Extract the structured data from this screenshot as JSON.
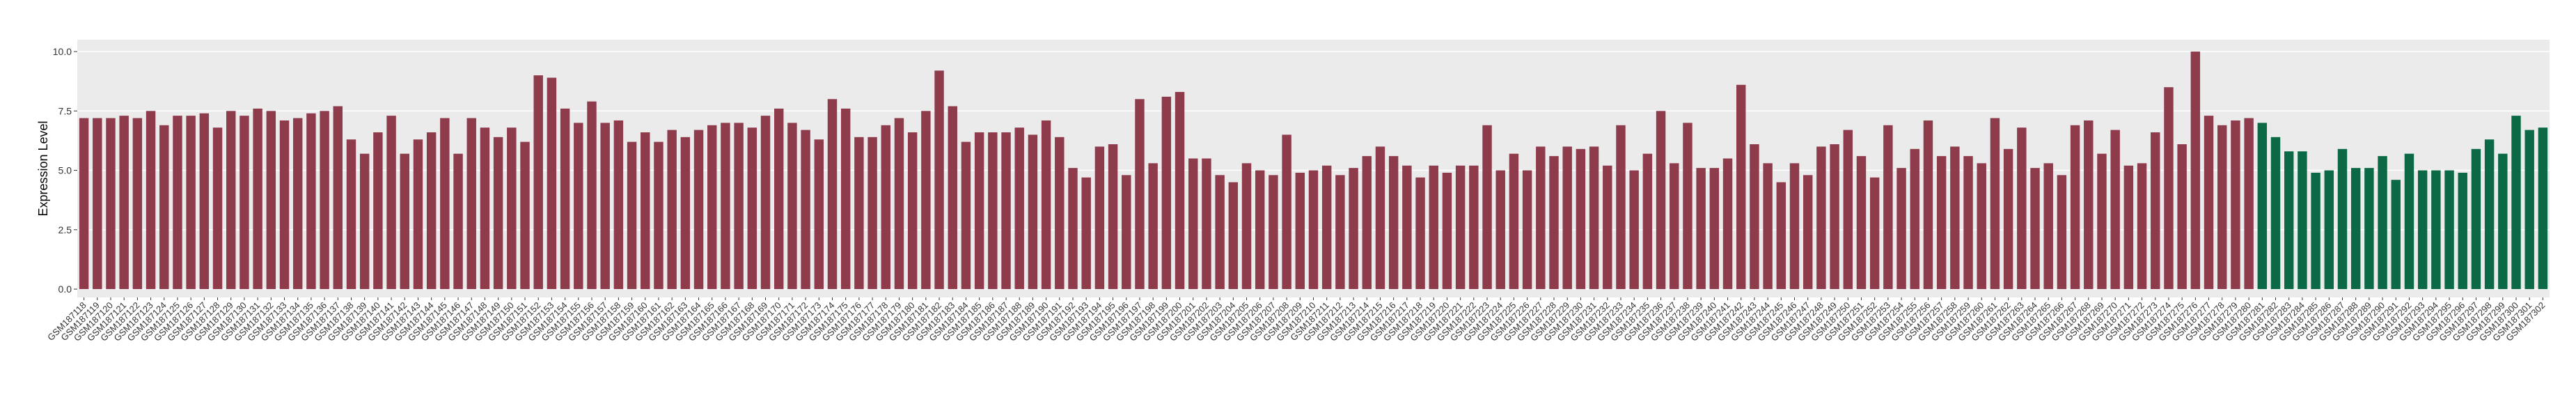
{
  "chart_data": {
    "type": "bar",
    "y_label": "Expression Level",
    "categories": [
      "GSM187118",
      "GSM187119",
      "GSM187120",
      "GSM187121",
      "GSM187122",
      "GSM187123",
      "GSM187124",
      "GSM187125",
      "GSM187126",
      "GSM187127",
      "GSM187128",
      "GSM187129",
      "GSM187130",
      "GSM187131",
      "GSM187132",
      "GSM187133",
      "GSM187134",
      "GSM187135",
      "GSM187136",
      "GSM187137",
      "GSM187138",
      "GSM187139",
      "GSM187140",
      "GSM187141",
      "GSM187142",
      "GSM187143",
      "GSM187144",
      "GSM187145",
      "GSM187146",
      "GSM187147",
      "GSM187148",
      "GSM187149",
      "GSM187150",
      "GSM187151",
      "GSM187152",
      "GSM187153",
      "GSM187154",
      "GSM187155",
      "GSM187156",
      "GSM187157",
      "GSM187158",
      "GSM187159",
      "GSM187160",
      "GSM187161",
      "GSM187162",
      "GSM187163",
      "GSM187164",
      "GSM187165",
      "GSM187166",
      "GSM187167",
      "GSM187168",
      "GSM187169",
      "GSM187170",
      "GSM187171",
      "GSM187172",
      "GSM187173",
      "GSM187174",
      "GSM187175",
      "GSM187176",
      "GSM187177",
      "GSM187178",
      "GSM187179",
      "GSM187180",
      "GSM187181",
      "GSM187182",
      "GSM187183",
      "GSM187184",
      "GSM187185",
      "GSM187186",
      "GSM187187",
      "GSM187188",
      "GSM187189",
      "GSM187190",
      "GSM187191",
      "GSM187192",
      "GSM187193",
      "GSM187194",
      "GSM187195",
      "GSM187196",
      "GSM187197",
      "GSM187198",
      "GSM187199",
      "GSM187200",
      "GSM187201",
      "GSM187202",
      "GSM187203",
      "GSM187204",
      "GSM187205",
      "GSM187206",
      "GSM187207",
      "GSM187208",
      "GSM187209",
      "GSM187210",
      "GSM187211",
      "GSM187212",
      "GSM187213",
      "GSM187214",
      "GSM187215",
      "GSM187216",
      "GSM187217",
      "GSM187218",
      "GSM187219",
      "GSM187220",
      "GSM187221",
      "GSM187222",
      "GSM187223",
      "GSM187224",
      "GSM187225",
      "GSM187226",
      "GSM187227",
      "GSM187228",
      "GSM187229",
      "GSM187230",
      "GSM187231",
      "GSM187232",
      "GSM187233",
      "GSM187234",
      "GSM187235",
      "GSM187236",
      "GSM187237",
      "GSM187238",
      "GSM187239",
      "GSM187240",
      "GSM187241",
      "GSM187242",
      "GSM187243",
      "GSM187244",
      "GSM187245",
      "GSM187246",
      "GSM187247",
      "GSM187248",
      "GSM187249",
      "GSM187250",
      "GSM187251",
      "GSM187252",
      "GSM187253",
      "GSM187254",
      "GSM187255",
      "GSM187256",
      "GSM187257",
      "GSM187258",
      "GSM187259",
      "GSM187260",
      "GSM187261",
      "GSM187262",
      "GSM187263",
      "GSM187264",
      "GSM187265",
      "GSM187266",
      "GSM187267",
      "GSM187268",
      "GSM187269",
      "GSM187270",
      "GSM187271",
      "GSM187272",
      "GSM187273",
      "GSM187274",
      "GSM187275",
      "GSM187276",
      "GSM187277",
      "GSM187278",
      "GSM187279",
      "GSM187280",
      "GSM187281",
      "GSM187282",
      "GSM187283",
      "GSM187284",
      "GSM187285",
      "GSM187286",
      "GSM187287",
      "GSM187288",
      "GSM187289",
      "GSM187290",
      "GSM187291",
      "GSM187292",
      "GSM187293",
      "GSM187294",
      "GSM187295",
      "GSM187296",
      "GSM187297",
      "GSM187298",
      "GSM187299",
      "GSM187300",
      "GSM187301",
      "GSM187302"
    ],
    "series": [
      {
        "color": "#8e3b4c",
        "values": [
          7.2,
          7.2,
          7.2,
          7.3,
          7.2,
          7.5,
          6.9,
          7.3,
          7.3,
          7.4,
          6.8,
          7.5,
          7.3,
          7.6,
          7.5,
          7.1,
          7.2,
          7.4,
          7.5,
          7.7,
          6.3,
          5.7,
          6.6,
          7.3,
          5.7,
          6.3,
          6.6,
          7.2,
          5.7,
          7.2,
          6.8,
          6.4,
          6.8,
          6.2,
          9.0,
          8.9,
          7.6,
          7.0,
          7.9,
          7.0,
          7.1,
          6.2,
          6.6,
          6.2,
          6.7,
          6.4,
          6.7,
          6.9,
          7.0,
          7.0,
          6.8,
          7.3,
          7.6,
          7.0,
          6.7,
          6.3,
          8.0,
          7.6,
          6.4,
          6.4,
          6.9,
          7.2,
          6.6,
          7.5,
          9.2,
          7.7,
          6.2,
          6.6,
          6.6,
          6.6,
          6.8,
          6.5,
          7.1,
          6.4,
          5.1,
          4.7,
          6.0,
          6.1,
          4.8,
          8.0,
          5.3,
          8.1,
          8.3,
          5.5,
          5.5,
          4.8,
          4.5,
          5.3,
          5.0,
          4.8,
          6.5,
          4.9,
          5.0,
          5.2,
          4.8,
          5.1,
          5.6,
          6.0,
          5.6,
          5.2,
          4.7,
          5.2,
          4.9,
          5.2,
          5.2,
          6.9,
          5.0,
          5.7,
          5.0,
          6.0,
          5.6,
          6.0,
          5.9,
          6.0,
          5.2,
          6.9,
          5.0,
          5.7,
          7.5,
          5.3,
          7.0,
          5.1,
          5.1,
          5.5,
          8.6,
          6.1,
          5.3,
          4.5,
          5.3,
          4.8,
          6.0,
          6.1,
          6.7,
          5.6,
          4.7,
          6.9,
          5.1,
          5.9,
          7.1,
          5.6,
          6.0,
          5.6,
          5.3,
          7.2,
          5.9,
          6.8,
          5.1,
          5.3,
          4.8,
          6.9,
          7.1,
          5.7,
          6.7,
          5.2,
          5.3,
          6.6,
          8.5,
          6.1,
          10.0,
          7.3,
          6.9,
          7.1,
          7.2,
          null,
          null,
          null,
          null,
          null,
          null,
          null,
          null,
          null,
          null,
          null,
          null,
          null,
          null,
          null,
          null,
          null,
          null,
          null,
          null,
          null,
          null
        ]
      },
      {
        "color": "#0b6a45",
        "values": [
          null,
          null,
          null,
          null,
          null,
          null,
          null,
          null,
          null,
          null,
          null,
          null,
          null,
          null,
          null,
          null,
          null,
          null,
          null,
          null,
          null,
          null,
          null,
          null,
          null,
          null,
          null,
          null,
          null,
          null,
          null,
          null,
          null,
          null,
          null,
          null,
          null,
          null,
          null,
          null,
          null,
          null,
          null,
          null,
          null,
          null,
          null,
          null,
          null,
          null,
          null,
          null,
          null,
          null,
          null,
          null,
          null,
          null,
          null,
          null,
          null,
          null,
          null,
          null,
          null,
          null,
          null,
          null,
          null,
          null,
          null,
          null,
          null,
          null,
          null,
          null,
          null,
          null,
          null,
          null,
          null,
          null,
          null,
          null,
          null,
          null,
          null,
          null,
          null,
          null,
          null,
          null,
          null,
          null,
          null,
          null,
          null,
          null,
          null,
          null,
          null,
          null,
          null,
          null,
          null,
          null,
          null,
          null,
          null,
          null,
          null,
          null,
          null,
          null,
          null,
          null,
          null,
          null,
          null,
          null,
          null,
          null,
          null,
          null,
          null,
          null,
          null,
          null,
          null,
          null,
          null,
          null,
          null,
          null,
          null,
          null,
          null,
          null,
          null,
          null,
          null,
          null,
          null,
          null,
          null,
          null,
          null,
          null,
          null,
          null,
          null,
          null,
          null,
          null,
          null,
          null,
          null,
          null,
          null,
          null,
          null,
          null,
          null,
          7.0,
          6.4,
          5.8,
          5.8,
          4.9,
          5.0,
          5.9,
          5.1,
          5.1,
          5.6,
          4.6,
          5.7,
          5.0,
          5.0,
          5.0,
          4.9,
          5.9,
          6.3,
          5.7,
          7.3,
          6.7,
          6.8
        ]
      }
    ],
    "ylim": [
      -0.35,
      10.5
    ],
    "yticks": [
      {
        "value": 0,
        "label": "0.0"
      },
      {
        "value": 2.5,
        "label": "2.5"
      },
      {
        "value": 5,
        "label": "5.0"
      },
      {
        "value": 7.5,
        "label": "7.5"
      },
      {
        "value": 10,
        "label": "10.0"
      }
    ],
    "grid": true
  }
}
